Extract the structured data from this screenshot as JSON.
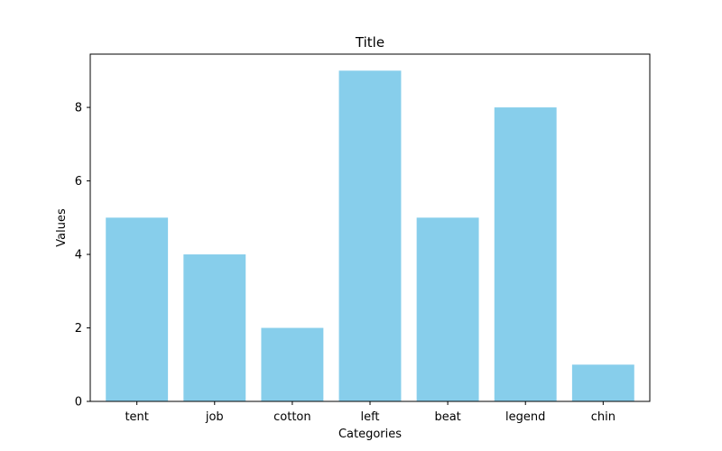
{
  "chart_data": {
    "type": "bar",
    "title": "Title",
    "xlabel": "Categories",
    "ylabel": "Values",
    "categories": [
      "tent",
      "job",
      "cotton",
      "left",
      "beat",
      "legend",
      "chin"
    ],
    "values": [
      5,
      4,
      2,
      9,
      5,
      8,
      1
    ],
    "ylim": [
      0,
      9.45
    ],
    "yticks": [
      0,
      2,
      4,
      6,
      8
    ],
    "bar_color": "#87ceeb",
    "grid": false
  }
}
